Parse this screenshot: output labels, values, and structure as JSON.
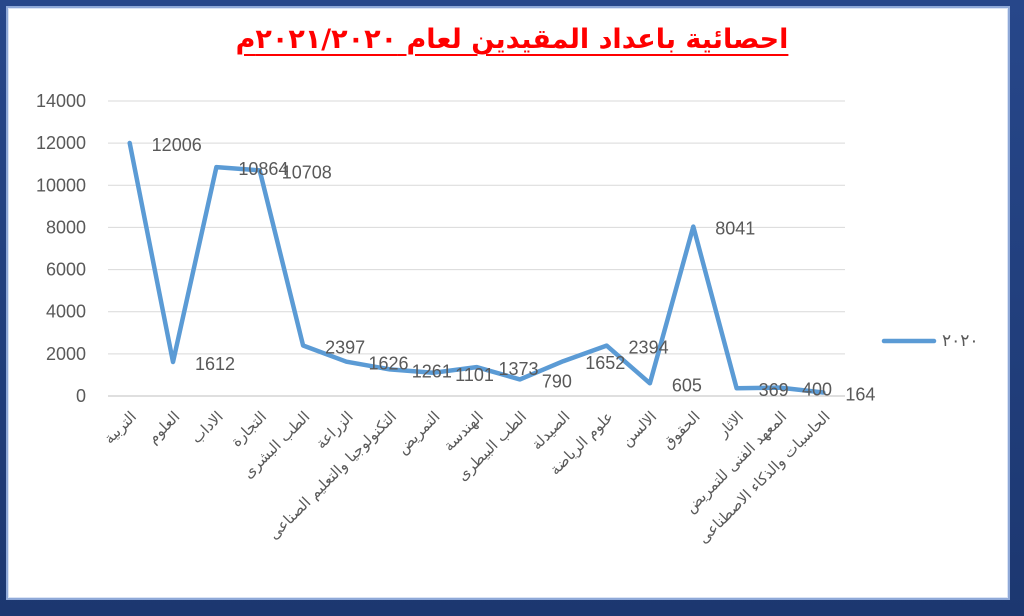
{
  "chart_data": {
    "type": "line",
    "title": "احصائية باعداد المقيدين لعام ٢٠٢١/٢٠٢٠م",
    "categories": [
      "التربية",
      "العلوم",
      "الاداب",
      "التجارة",
      "الطب البشرى",
      "الزراعة",
      "التكنولوجيا والتعليم الصناعى",
      "التمريض",
      "الهندسة",
      "الطب البيطرى",
      "الصيدلة",
      "علوم الرياضة",
      "الالسن",
      "الحقوق",
      "الاثار",
      "المعهد الفنى للتمريض",
      "الحاسبات والذكاء الاصطناعى"
    ],
    "series": [
      {
        "name": "٢٠٢٠",
        "values": [
          12006,
          1612,
          10864,
          10708,
          2397,
          1626,
          1261,
          1101,
          1373,
          790,
          1652,
          2394,
          605,
          8041,
          369,
          400,
          164
        ],
        "color": "#5B9BD5"
      }
    ],
    "ylim": [
      0,
      14000
    ],
    "ytick_step": 2000,
    "grid": true,
    "legend": "right",
    "data_labels": true
  },
  "colors": {
    "title": "#FF0000",
    "axis_text": "#595959",
    "grid": "#D9D9D9",
    "axis_line": "#BFBFBF",
    "frame": "#1F3F7D"
  }
}
